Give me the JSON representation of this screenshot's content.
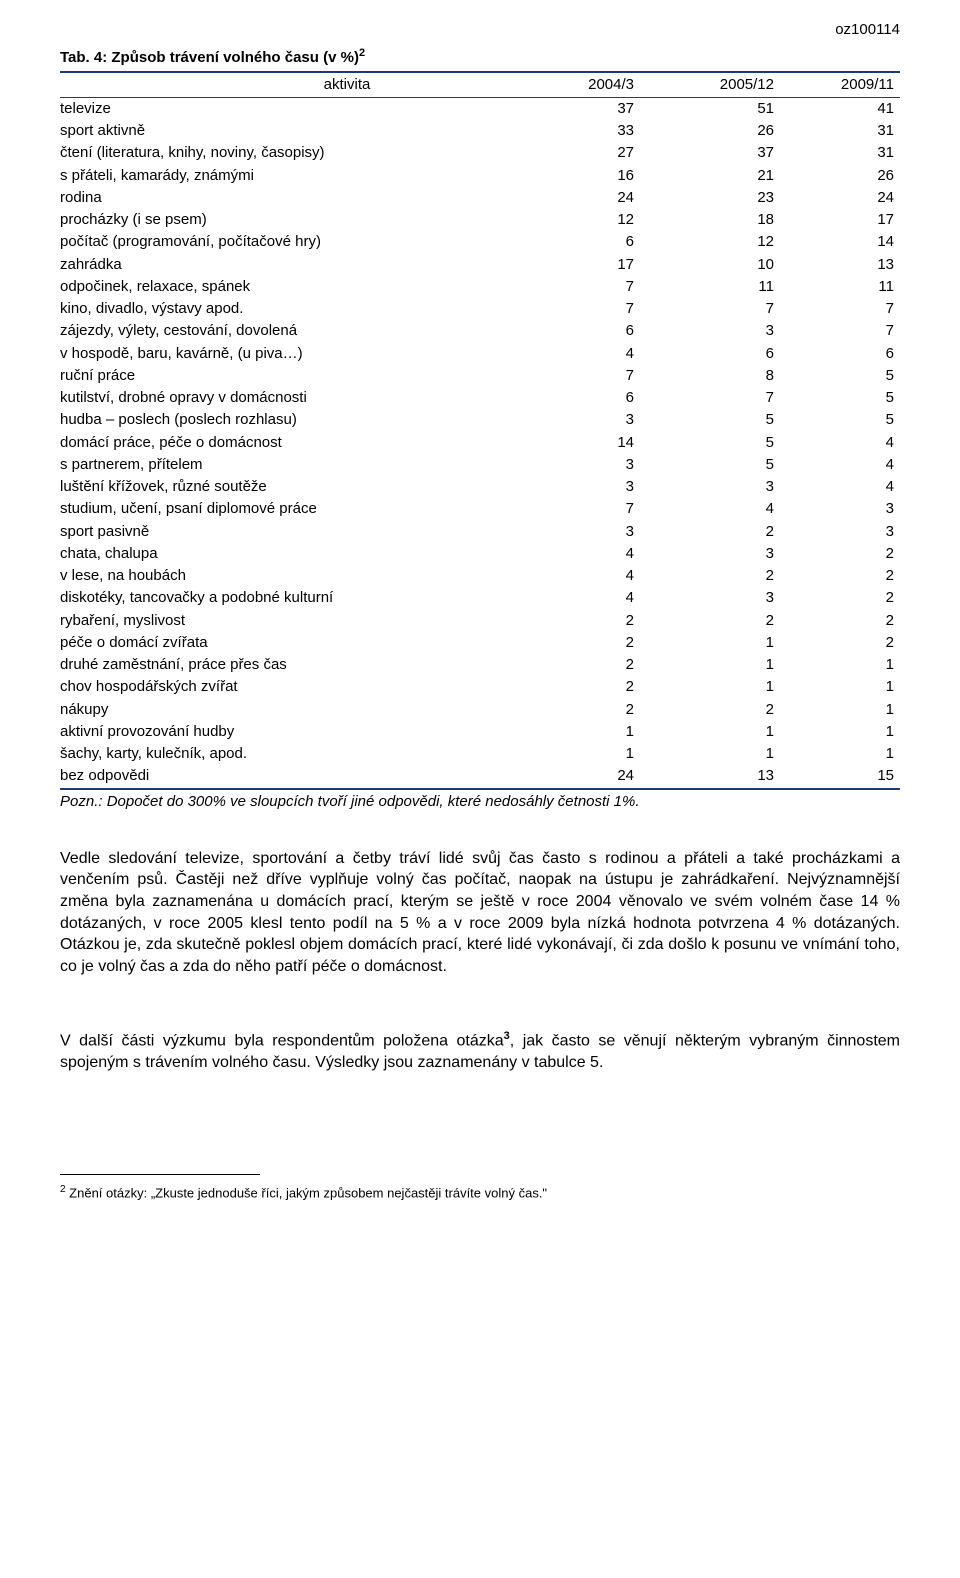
{
  "doc_code": "oz100114",
  "table": {
    "title_prefix": "Tab. 4: Způsob trávení volného času (v %)",
    "title_sup": "2",
    "header": {
      "activity_label": "aktivita",
      "col1": "2004/3",
      "col2": "2005/12",
      "col3": "2009/11"
    },
    "rows": [
      {
        "label": "televize",
        "c1": "37",
        "c2": "51",
        "c3": "41"
      },
      {
        "label": "sport aktivně",
        "c1": "33",
        "c2": "26",
        "c3": "31"
      },
      {
        "label": "čtení (literatura, knihy, noviny, časopisy)",
        "c1": "27",
        "c2": "37",
        "c3": "31"
      },
      {
        "label": "s přáteli, kamarády, známými",
        "c1": "16",
        "c2": "21",
        "c3": "26"
      },
      {
        "label": "rodina",
        "c1": "24",
        "c2": "23",
        "c3": "24"
      },
      {
        "label": "procházky (i se psem)",
        "c1": "12",
        "c2": "18",
        "c3": "17"
      },
      {
        "label": "počítač (programování, počítačové hry)",
        "c1": "6",
        "c2": "12",
        "c3": "14"
      },
      {
        "label": "zahrádka",
        "c1": "17",
        "c2": "10",
        "c3": "13"
      },
      {
        "label": "odpočinek, relaxace, spánek",
        "c1": "7",
        "c2": "11",
        "c3": "11"
      },
      {
        "label": "kino, divadlo, výstavy apod.",
        "c1": "7",
        "c2": "7",
        "c3": "7"
      },
      {
        "label": "zájezdy, výlety, cestování, dovolená",
        "c1": "6",
        "c2": "3",
        "c3": "7"
      },
      {
        "label": "v hospodě, baru, kavárně, (u piva…)",
        "c1": "4",
        "c2": "6",
        "c3": "6"
      },
      {
        "label": "ruční práce",
        "c1": "7",
        "c2": "8",
        "c3": "5"
      },
      {
        "label": "kutilství, drobné opravy v domácnosti",
        "c1": "6",
        "c2": "7",
        "c3": "5"
      },
      {
        "label": "hudba – poslech (poslech rozhlasu)",
        "c1": "3",
        "c2": "5",
        "c3": "5"
      },
      {
        "label": "domácí práce, péče o domácnost",
        "c1": "14",
        "c2": "5",
        "c3": "4"
      },
      {
        "label": "s partnerem, přítelem",
        "c1": "3",
        "c2": "5",
        "c3": "4"
      },
      {
        "label": "luštění křížovek, různé soutěže",
        "c1": "3",
        "c2": "3",
        "c3": "4"
      },
      {
        "label": "studium, učení, psaní diplomové práce",
        "c1": "7",
        "c2": "4",
        "c3": "3"
      },
      {
        "label": "sport pasivně",
        "c1": "3",
        "c2": "2",
        "c3": "3"
      },
      {
        "label": "chata, chalupa",
        "c1": "4",
        "c2": "3",
        "c3": "2"
      },
      {
        "label": "v lese, na houbách",
        "c1": "4",
        "c2": "2",
        "c3": "2"
      },
      {
        "label": "diskotéky, tancovačky a podobné kulturní",
        "c1": "4",
        "c2": "3",
        "c3": "2"
      },
      {
        "label": "rybaření, myslivost",
        "c1": "2",
        "c2": "2",
        "c3": "2"
      },
      {
        "label": "péče o domácí zvířata",
        "c1": "2",
        "c2": "1",
        "c3": "2"
      },
      {
        "label": "druhé zaměstnání, práce přes čas",
        "c1": "2",
        "c2": "1",
        "c3": "1"
      },
      {
        "label": "chov hospodářských zvířat",
        "c1": "2",
        "c2": "1",
        "c3": "1"
      },
      {
        "label": "nákupy",
        "c1": "2",
        "c2": "2",
        "c3": "1"
      },
      {
        "label": "aktivní provozování hudby",
        "c1": "1",
        "c2": "1",
        "c3": "1"
      },
      {
        "label": "šachy, karty, kulečník, apod.",
        "c1": "1",
        "c2": "1",
        "c3": "1"
      },
      {
        "label": "bez odpovědi",
        "c1": "24",
        "c2": "13",
        "c3": "15"
      }
    ],
    "note": "Pozn.: Dopočet do 300% ve sloupcích tvoří jiné odpovědi, které nedosáhly četnosti 1%."
  },
  "paragraph1": "Vedle sledování televize, sportování a četby tráví lidé svůj čas často s rodinou a přáteli a také procházkami a venčením psů. Častěji než dříve vyplňuje volný čas počítač, naopak na ústupu je zahrádkaření. Nejvýznamnější změna byla zaznamenána u domácích prací, kterým se ještě v roce 2004 věnovalo ve svém volném čase 14 % dotázaných, v roce 2005 klesl tento podíl na 5 % a v roce 2009 byla nízká hodnota potvrzena 4 % dotázaných. Otázkou je, zda skutečně poklesl objem domácích prací, které lidé vykonávají, či zda došlo k posunu ve vnímání toho, co je volný čas a zda do něho patří péče o domácnost.",
  "paragraph2_pre": "V další části výzkumu byla respondentům položena otázka",
  "paragraph2_sup": "3",
  "paragraph2_post": ", jak často se věnují některým vybraným činnostem spojeným s trávením volného času. Výsledky jsou zaznamenány v tabulce 5.",
  "footnote": {
    "num": "2",
    "text": " Znění otázky: „Zkuste jednoduše říci, jakým způsobem nejčastěji trávíte volný čas.\""
  },
  "colors": {
    "rule": "#1a3a7a",
    "text": "#000000",
    "bg": "#ffffff"
  }
}
